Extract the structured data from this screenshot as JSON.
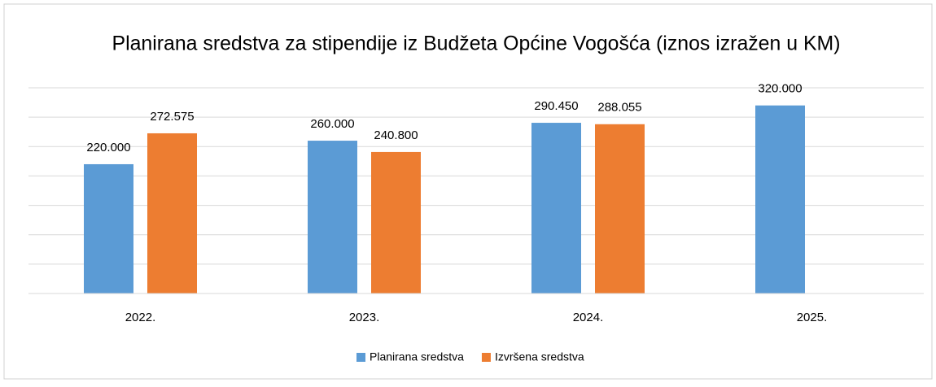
{
  "chart_data": {
    "type": "bar",
    "title": "Planirana sredstva za stipendije iz Budžeta Općine Vogošća (iznos izražen u KM)",
    "categories": [
      "2022.",
      "2023.",
      "2024.",
      "2025."
    ],
    "series": [
      {
        "name": "Planirana sredstva",
        "color": "#5b9bd5",
        "values": [
          220000,
          260000,
          290450,
          320000
        ],
        "value_labels": [
          "220.000",
          "260.000",
          "290.450",
          "320.000"
        ]
      },
      {
        "name": "Izvršena sredstva",
        "color": "#ed7d31",
        "values": [
          272575,
          240800,
          288055,
          null
        ],
        "value_labels": [
          "272.575",
          "240.800",
          "288.055",
          null
        ]
      }
    ],
    "ylim": [
      0,
      350000
    ],
    "yticks": [
      0,
      50000,
      100000,
      150000,
      200000,
      250000,
      300000,
      350000
    ],
    "grid": true,
    "legend": "bottom"
  }
}
